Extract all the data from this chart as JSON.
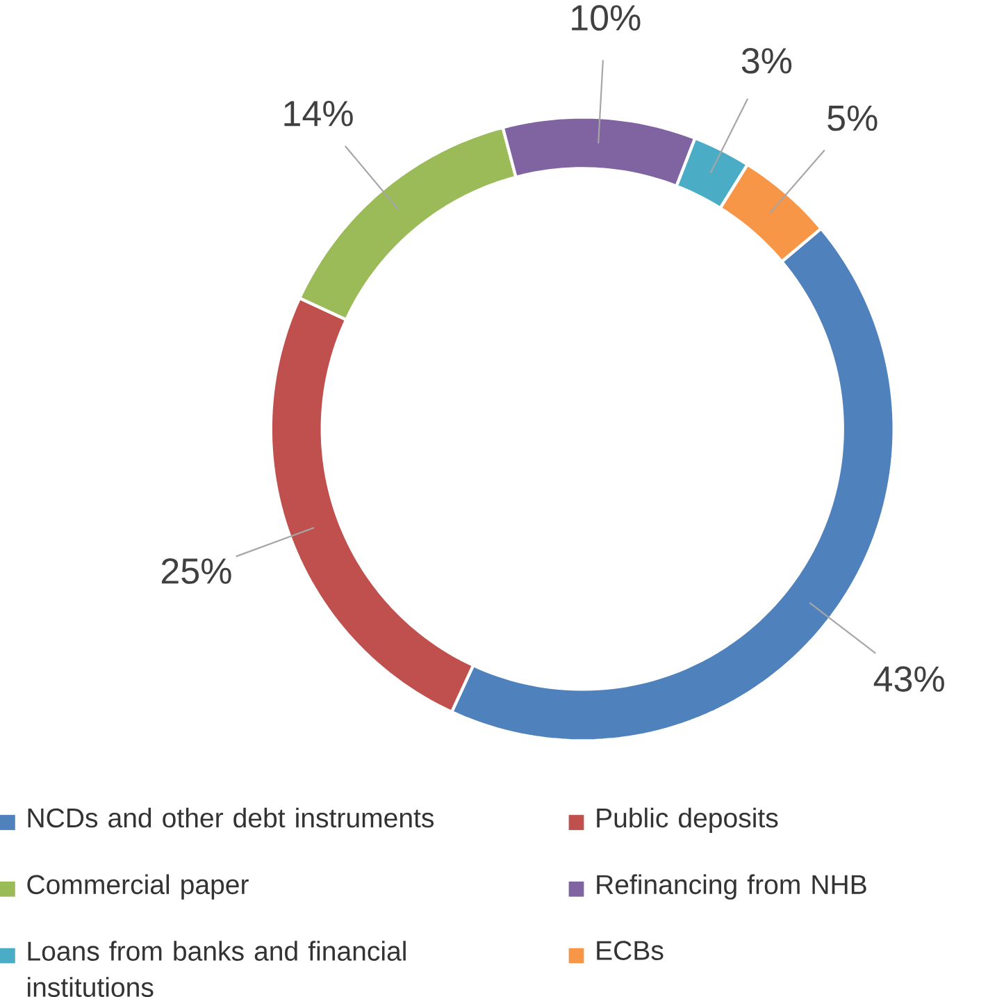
{
  "chart_data": {
    "type": "donut",
    "categories": [
      "NCDs and other debt instruments",
      "Public deposits",
      "Commercial paper",
      "Refinancing from NHB",
      "Loans from banks and financial institutions",
      "ECBs"
    ],
    "values": [
      43,
      25,
      14,
      10,
      3,
      5
    ],
    "value_labels": [
      "43%",
      "25%",
      "14%",
      "10%",
      "3%",
      "5%"
    ],
    "colors": [
      "#4f81bd",
      "#c0504d",
      "#9bbb59",
      "#8064a2",
      "#4bacc6",
      "#f79646"
    ],
    "legend": "bottom"
  }
}
